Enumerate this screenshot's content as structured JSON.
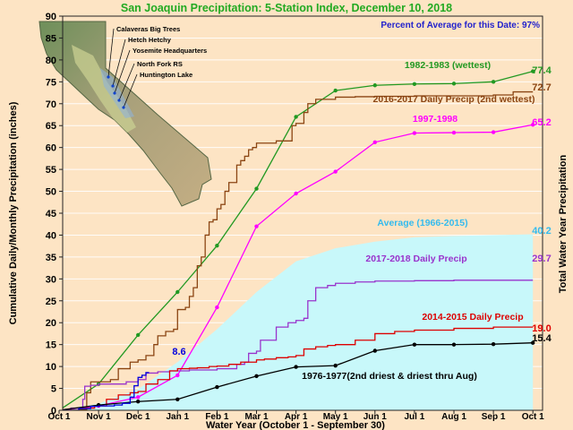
{
  "chart_data": {
    "type": "line",
    "title": "San Joaquin Precipitation: 5-Station Index, December 10, 2018",
    "percent_note": "Percent of Average for this Date: 97%",
    "ylabel": "Cumulative Daily/Monthly Precipitation (inches)",
    "ylabel_right": "Total Water Year Precipitation",
    "xlabel": "Water Year (October 1 - September 30)",
    "ylim": [
      0,
      90
    ],
    "y_ticks": [
      0,
      5,
      10,
      15,
      20,
      25,
      30,
      35,
      40,
      45,
      50,
      55,
      60,
      65,
      70,
      75,
      80,
      85,
      90
    ],
    "categories": [
      "Oct 1",
      "Nov 1",
      "Dec 1",
      "Jan 1",
      "Feb 1",
      "Mar 1",
      "Apr 1",
      "May 1",
      "Jun 1",
      "Jul 1",
      "Aug 1",
      "Sep 1",
      "Oct 1"
    ],
    "map_stations": [
      "Calaveras Big Trees",
      "Hetch Hetchy",
      "Yosemite Headquarters",
      "North Fork RS",
      "Huntington Lake"
    ],
    "average": {
      "name": "Average (1966-2015)",
      "total_label": "40.2",
      "color": "#c8f8fa",
      "label_color": "#33bbee",
      "x": [
        0,
        1,
        2,
        3,
        4,
        5,
        6,
        7,
        8,
        9,
        10,
        11,
        12
      ],
      "values": [
        0,
        1.5,
        4.8,
        11,
        18.5,
        27,
        34,
        37,
        38.5,
        39.5,
        39.8,
        40,
        40.2
      ]
    },
    "series": [
      {
        "name": "1982-1983 (wettest)",
        "total_label": "77.4",
        "color": "#229922",
        "style": "monthly",
        "x": [
          0,
          1,
          2,
          3,
          4,
          5,
          6,
          7,
          8,
          9,
          10,
          11,
          12
        ],
        "values": [
          0,
          6,
          17.2,
          27,
          37.6,
          50.6,
          67,
          73,
          74.2,
          74.5,
          74.6,
          75,
          77.4
        ]
      },
      {
        "name": "2016-2017 Daily Precip (2nd wettest)",
        "total_label": "72.7",
        "color": "#8b4513",
        "style": "daily",
        "x": [
          0,
          0.5,
          0.7,
          0.8,
          1.1,
          1.3,
          1.5,
          1.8,
          2.0,
          2.2,
          2.4,
          2.5,
          2.7,
          2.9,
          3.0,
          3.2,
          3.3,
          3.4,
          3.5,
          3.6,
          3.7,
          3.8,
          3.9,
          4.0,
          4.1,
          4.2,
          4.3,
          4.5,
          4.6,
          4.7,
          4.8,
          4.9,
          5.0,
          5.3,
          5.5,
          5.7,
          5.9,
          6.0,
          6.2,
          6.3,
          6.5,
          6.7,
          7.0,
          7.5,
          8.0,
          9.0,
          10.0,
          11.0,
          11.5,
          12.0
        ],
        "values": [
          0,
          0.2,
          4,
          6.5,
          6.5,
          7,
          9.5,
          11,
          11.5,
          12.5,
          15,
          17,
          18,
          18.5,
          23,
          23.5,
          26,
          28,
          33,
          35,
          40,
          43,
          43.5,
          46,
          47,
          50,
          52,
          56,
          57,
          58,
          59.5,
          60,
          61,
          61,
          61.5,
          61.5,
          65,
          65.5,
          68,
          70,
          71,
          71,
          71.5,
          71.6,
          71.7,
          71.8,
          71.8,
          72.0,
          72.7,
          72.7
        ]
      },
      {
        "name": "1997-1998",
        "total_label": "65.2",
        "color": "#ff00ff",
        "style": "monthly",
        "x": [
          0,
          1,
          2,
          3,
          4,
          5,
          6,
          7,
          8,
          9,
          10,
          11,
          12
        ],
        "values": [
          0,
          1,
          3,
          8,
          23.5,
          42,
          49.5,
          54.5,
          61.2,
          63.3,
          63.4,
          63.5,
          65.2
        ]
      },
      {
        "name": "2017-2018 Daily Precip",
        "total_label": "29.7",
        "color": "#9933cc",
        "style": "daily",
        "x": [
          0,
          0.3,
          0.6,
          0.65,
          0.8,
          1.0,
          1.3,
          1.5,
          1.7,
          2.0,
          2.2,
          2.5,
          2.8,
          3.0,
          3.3,
          3.5,
          3.7,
          4.0,
          4.2,
          4.5,
          4.7,
          4.8,
          5.0,
          5.1,
          5.3,
          5.5,
          5.7,
          5.8,
          6.0,
          6.2,
          6.3,
          6.5,
          6.8,
          7.0,
          7.5,
          8.0,
          9.0,
          10.0,
          11.0,
          12.0
        ],
        "values": [
          0,
          0.5,
          2.5,
          5.5,
          5.7,
          6,
          6,
          6,
          6.5,
          7,
          8.5,
          8.8,
          9,
          9,
          9.2,
          9.2,
          9.2,
          9.5,
          9.5,
          10.5,
          11,
          13,
          13.5,
          16,
          16,
          19,
          19,
          20,
          20.5,
          21,
          25,
          28,
          28.5,
          29,
          29.3,
          29.5,
          29.6,
          29.7,
          29.7,
          29.7
        ]
      },
      {
        "name": "2014-2015 Daily Precip",
        "total_label": "19.0",
        "color": "#dd0000",
        "style": "daily",
        "x": [
          0,
          0.5,
          0.9,
          1.2,
          1.5,
          1.8,
          2.0,
          2.2,
          2.5,
          2.8,
          3.0,
          3.3,
          3.5,
          3.8,
          4.0,
          4.3,
          4.6,
          5.0,
          5.2,
          5.5,
          5.8,
          6.0,
          6.2,
          6.5,
          6.8,
          7.0,
          7.5,
          8.0,
          8.5,
          9.0,
          10.0,
          11.0,
          12.0
        ],
        "values": [
          0,
          0.5,
          1,
          2.5,
          3.5,
          4,
          4.3,
          6,
          7,
          9,
          9.5,
          9.6,
          9.7,
          10,
          10.1,
          10.5,
          11,
          11.5,
          11.7,
          12,
          12.2,
          12.5,
          14,
          14.5,
          14.8,
          15,
          16,
          17.5,
          18,
          18.3,
          18.7,
          19,
          19
        ]
      },
      {
        "name": "1976-1977(2nd driest & driest thru Aug)",
        "total_label": "15.4",
        "color": "#000000",
        "style": "monthly",
        "x": [
          0,
          1,
          2,
          3,
          4,
          5,
          6,
          7,
          8,
          9,
          10,
          11,
          12
        ],
        "values": [
          0,
          1.2,
          2,
          2.5,
          5.3,
          7.8,
          9.9,
          10.2,
          13.6,
          15,
          15,
          15.1,
          15.4
        ]
      },
      {
        "name": "",
        "total_label": "8.6",
        "color": "#0000dd",
        "style": "daily",
        "x": [
          0,
          0.5,
          0.8,
          1.0,
          1.2,
          1.4,
          1.6,
          1.8,
          1.9,
          2.0,
          2.1,
          2.2,
          2.28
        ],
        "values": [
          0,
          0.4,
          0.9,
          1.0,
          1.0,
          1.2,
          1.6,
          3.0,
          5.6,
          7.5,
          8.0,
          8.6,
          8.6
        ]
      }
    ]
  }
}
